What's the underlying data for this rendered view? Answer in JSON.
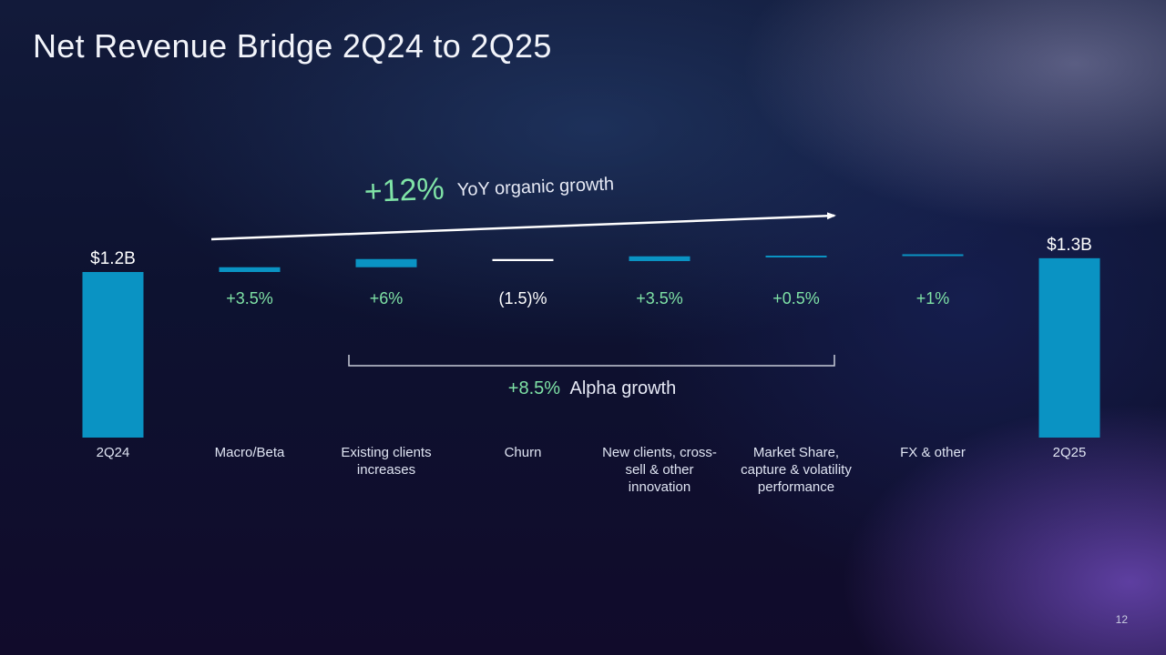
{
  "page": {
    "title": "Net Revenue Bridge 2Q24 to 2Q25",
    "page_number": "12"
  },
  "colors": {
    "bar": "#0a93c3",
    "negative_bar": "#ffffff",
    "positive_label": "#7fe3a6",
    "text": "#ffffff"
  },
  "annotations": {
    "organic_pct": "+12%",
    "organic_text": "YoY organic growth",
    "alpha_pct": "+8.5%",
    "alpha_text": "Alpha growth"
  },
  "chart_data": {
    "type": "bar",
    "subtype": "waterfall",
    "title": "Net Revenue Bridge 2Q24 to 2Q25",
    "xlabel": "",
    "ylabel": "",
    "categories": [
      "2Q24",
      "Macro/Beta",
      "Existing clients increases",
      "Churn",
      "New clients, cross-sell & other innovation",
      "Market Share, capture & volatility performance",
      "FX & other",
      "2Q25"
    ],
    "category_label_lines": [
      [
        "2Q24"
      ],
      [
        "Macro/Beta"
      ],
      [
        "Existing clients",
        "increases"
      ],
      [
        "Churn"
      ],
      [
        "New clients, cross-",
        "sell & other",
        "innovation"
      ],
      [
        "Market Share,",
        "capture & volatility",
        "performance"
      ],
      [
        "FX & other"
      ],
      [
        "2Q25"
      ]
    ],
    "kinds": [
      "total",
      "delta",
      "delta",
      "delta",
      "delta",
      "delta",
      "delta",
      "total"
    ],
    "values": [
      1.2,
      3.5,
      6,
      -1.5,
      3.5,
      0.5,
      1,
      1.3
    ],
    "value_labels": [
      "$1.2B",
      "+3.5%",
      "+6%",
      "(1.5)%",
      "+3.5%",
      "+0.5%",
      "+1%",
      "$1.3B"
    ],
    "units": {
      "total": "$B",
      "delta": "%"
    },
    "ylim": [
      0,
      1.3
    ],
    "grid": false,
    "legend": "none"
  }
}
